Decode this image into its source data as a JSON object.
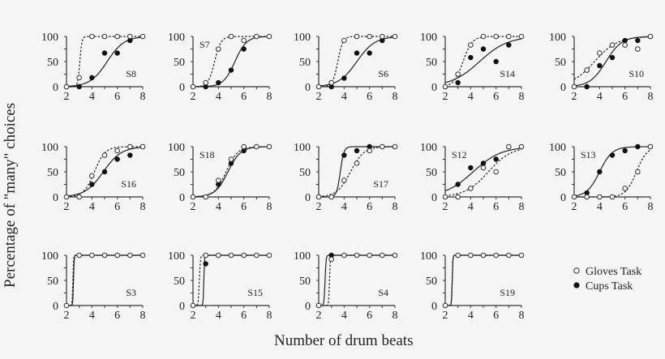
{
  "figure": {
    "ylabel": "Percentage of \"many\" choices",
    "xlabel": "Number of drum beats",
    "legend": [
      {
        "label": "Gloves Task",
        "marker": "open-circle",
        "line": "dashed"
      },
      {
        "label": "Cups Task",
        "marker": "filled-circle",
        "line": "solid"
      }
    ]
  },
  "chart_data": {
    "type": "line",
    "title": "",
    "xlabel": "Number of drum beats",
    "ylabel": "Percentage of \"many\" choices",
    "xlim": [
      2,
      8
    ],
    "ylim": [
      0,
      100
    ],
    "xticks": [
      2,
      4,
      6,
      8
    ],
    "yticks": [
      0,
      50,
      100
    ],
    "grid": false,
    "legend_position": "bottom-right",
    "panels": [
      {
        "subject": "S8",
        "row": 0,
        "col": 0,
        "label_pos": "br",
        "gloves": {
          "x": [
            2,
            3,
            4,
            5,
            6,
            7,
            8
          ],
          "y": [
            0,
            18,
            100,
            100,
            100,
            100,
            100
          ],
          "fit": {
            "mid": 3.05,
            "slope": 12
          }
        },
        "cups": {
          "x": [
            3,
            4,
            5,
            6,
            7
          ],
          "y": [
            0,
            18,
            67,
            67,
            92
          ],
          "fit": {
            "mid": 5.2,
            "slope": 1.5
          }
        }
      },
      {
        "subject": "S7",
        "row": 0,
        "col": 1,
        "label_pos": "tl",
        "gloves": {
          "x": [
            2,
            3,
            4,
            5,
            6,
            7,
            8
          ],
          "y": [
            0,
            8,
            75,
            100,
            92,
            100,
            100
          ],
          "fit": {
            "mid": 3.7,
            "slope": 4
          }
        },
        "cups": {
          "x": [
            3,
            4,
            5,
            6
          ],
          "y": [
            0,
            8,
            33,
            75
          ],
          "fit": {
            "mid": 5.3,
            "slope": 2.2
          }
        }
      },
      {
        "subject": "S6",
        "row": 0,
        "col": 2,
        "label_pos": "br",
        "gloves": {
          "x": [
            2,
            3,
            4,
            5,
            6,
            7,
            8
          ],
          "y": [
            0,
            8,
            92,
            100,
            100,
            100,
            100
          ],
          "fit": {
            "mid": 3.5,
            "slope": 5
          }
        },
        "cups": {
          "x": [
            3,
            4,
            5,
            6,
            7
          ],
          "y": [
            0,
            17,
            67,
            67,
            92
          ],
          "fit": {
            "mid": 5.0,
            "slope": 1.4
          }
        }
      },
      {
        "subject": "S14",
        "row": 0,
        "col": 3,
        "label_pos": "br",
        "gloves": {
          "x": [
            2,
            3,
            4,
            5,
            6,
            7,
            8
          ],
          "y": [
            0,
            25,
            83,
            100,
            100,
            100,
            100
          ],
          "fit": {
            "mid": 3.4,
            "slope": 2.8
          }
        },
        "cups": {
          "x": [
            3,
            4,
            5,
            6,
            7
          ],
          "y": [
            8,
            58,
            75,
            50,
            83
          ],
          "fit": {
            "mid": 4.7,
            "slope": 0.9
          }
        }
      },
      {
        "subject": "S10",
        "row": 0,
        "col": 4,
        "label_pos": "br",
        "gloves": {
          "x": [
            2,
            3,
            4,
            5,
            6,
            7,
            8
          ],
          "y": [
            0,
            33,
            67,
            83,
            83,
            75,
            100
          ],
          "fit": {
            "mid": 3.6,
            "slope": 1.1
          }
        },
        "cups": {
          "x": [
            3,
            4,
            5,
            6,
            7
          ],
          "y": [
            0,
            42,
            58,
            92,
            92
          ],
          "fit": {
            "mid": 4.5,
            "slope": 1.6
          }
        }
      },
      {
        "subject": "S16",
        "row": 1,
        "col": 0,
        "label_pos": "br",
        "gloves": {
          "x": [
            2,
            3,
            4,
            5,
            6,
            7,
            8
          ],
          "y": [
            0,
            0,
            42,
            83,
            92,
            100,
            100
          ],
          "fit": {
            "mid": 4.2,
            "slope": 2.4
          }
        },
        "cups": {
          "x": [
            4,
            5,
            6,
            7
          ],
          "y": [
            25,
            50,
            75,
            83
          ],
          "fit": {
            "mid": 4.9,
            "slope": 1.4
          }
        }
      },
      {
        "subject": "S18",
        "row": 1,
        "col": 1,
        "label_pos": "tl",
        "gloves": {
          "x": [
            2,
            3,
            4,
            5,
            6,
            7,
            8
          ],
          "y": [
            0,
            0,
            33,
            75,
            100,
            100,
            100
          ],
          "fit": {
            "mid": 4.6,
            "slope": 2.2
          }
        },
        "cups": {
          "x": [
            4,
            5,
            6
          ],
          "y": [
            25,
            67,
            92
          ],
          "fit": {
            "mid": 4.75,
            "slope": 2.0
          }
        }
      },
      {
        "subject": "S17",
        "row": 1,
        "col": 2,
        "label_pos": "br",
        "gloves": {
          "x": [
            2,
            3,
            4,
            5,
            6,
            7,
            8
          ],
          "y": [
            0,
            0,
            33,
            67,
            92,
            100,
            100
          ],
          "fit": {
            "mid": 4.5,
            "slope": 1.9
          }
        },
        "cups": {
          "x": [
            4,
            5,
            6
          ],
          "y": [
            83,
            92,
            100
          ],
          "fit": {
            "mid": 3.7,
            "slope": 7
          }
        }
      },
      {
        "subject": "S12",
        "row": 1,
        "col": 3,
        "label_pos": "tl",
        "gloves": {
          "x": [
            2,
            3,
            4,
            5,
            6,
            7,
            8
          ],
          "y": [
            0,
            0,
            17,
            58,
            50,
            100,
            100
          ],
          "fit": {
            "mid": 5.4,
            "slope": 1.1
          }
        },
        "cups": {
          "x": [
            3,
            4,
            5,
            6
          ],
          "y": [
            25,
            58,
            67,
            75
          ],
          "fit": {
            "mid": 4.2,
            "slope": 0.9
          }
        }
      },
      {
        "subject": "S13",
        "row": 1,
        "col": 4,
        "label_pos": "tl",
        "gloves": {
          "x": [
            2,
            3,
            4,
            5,
            6,
            7,
            8
          ],
          "y": [
            0,
            0,
            0,
            0,
            17,
            50,
            100
          ],
          "fit": {
            "mid": 6.9,
            "slope": 2.4
          }
        },
        "cups": {
          "x": [
            3,
            4,
            5,
            6,
            7
          ],
          "y": [
            8,
            50,
            83,
            92,
            100
          ],
          "fit": {
            "mid": 4.0,
            "slope": 2.0
          }
        }
      },
      {
        "subject": "S3",
        "row": 2,
        "col": 0,
        "label_pos": "br",
        "gloves": {
          "x": [
            2,
            3,
            4,
            5,
            6,
            7,
            8
          ],
          "y": [
            0,
            100,
            100,
            100,
            100,
            100,
            100
          ],
          "fit": {
            "mid": 2.5,
            "slope": 40
          }
        },
        "cups": {
          "x": [],
          "y": [],
          "fit": {
            "mid": 2.55,
            "slope": 40
          }
        }
      },
      {
        "subject": "S15",
        "row": 2,
        "col": 1,
        "label_pos": "br",
        "gloves": {
          "x": [
            2,
            3,
            4,
            5,
            6,
            7,
            8
          ],
          "y": [
            0,
            100,
            100,
            100,
            100,
            100,
            100
          ],
          "fit": {
            "mid": 2.5,
            "slope": 25
          }
        },
        "cups": {
          "x": [
            3
          ],
          "y": [
            83
          ],
          "fit": {
            "mid": 2.85,
            "slope": 40
          }
        }
      },
      {
        "subject": "S4",
        "row": 2,
        "col": 2,
        "label_pos": "br",
        "gloves": {
          "x": [
            2,
            3,
            4,
            5,
            6,
            7,
            8
          ],
          "y": [
            0,
            92,
            100,
            100,
            100,
            100,
            100
          ],
          "fit": {
            "mid": 2.85,
            "slope": 30
          }
        },
        "cups": {
          "x": [
            3
          ],
          "y": [
            100
          ],
          "fit": {
            "mid": 2.5,
            "slope": 25
          }
        }
      },
      {
        "subject": "S19",
        "row": 2,
        "col": 3,
        "label_pos": "br",
        "gloves": {
          "x": [
            2,
            3,
            4,
            5,
            6,
            7,
            8
          ],
          "y": [
            0,
            100,
            100,
            100,
            100,
            100,
            100
          ],
          "fit": {
            "mid": 2.55,
            "slope": 40
          }
        },
        "cups": {
          "x": [],
          "y": [],
          "fit": {
            "mid": 2.55,
            "slope": 40
          }
        }
      }
    ]
  }
}
